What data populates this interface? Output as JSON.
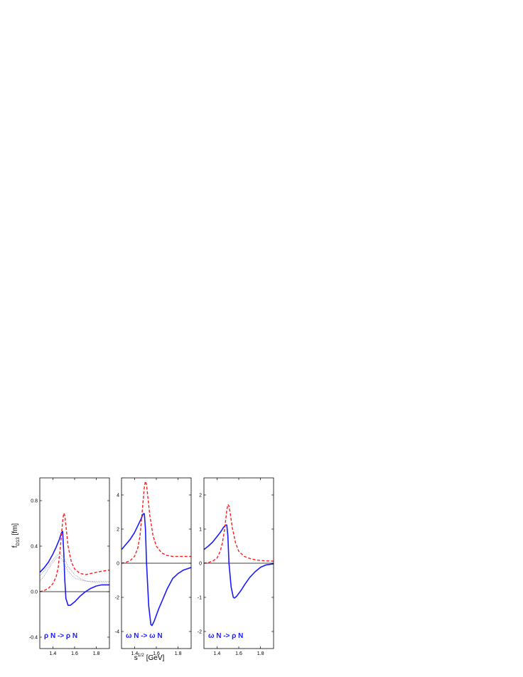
{
  "figure": {
    "ylabel_main": "f",
    "ylabel_sub": "D13",
    "ylabel_unit": "[fm]",
    "xlabel_main": "s",
    "xlabel_sup": "1/2",
    "xlabel_unit": "[GeV]"
  },
  "colors": {
    "solid": "#1a1aff",
    "dashed": "#ff1a1a",
    "dotted": "#8888aa",
    "frame": "#000000"
  },
  "chart_data": [
    {
      "type": "line",
      "annotation": "ρ N -> ρ N",
      "xlim": [
        1.28,
        1.92
      ],
      "ylim": [
        -0.5,
        1.0
      ],
      "xticks": [
        1.4,
        1.6,
        1.8
      ],
      "xtick_labels": [
        "1.4",
        "1.6",
        "1.8"
      ],
      "yticks": [
        -0.4,
        0.0,
        0.4,
        0.8
      ],
      "ytick_labels": [
        "-0.4",
        "0.0",
        "0.4",
        "0.8"
      ],
      "zero_line": true,
      "series": [
        {
          "style": "solid",
          "x": [
            1.28,
            1.32,
            1.36,
            1.4,
            1.43,
            1.46,
            1.48,
            1.49,
            1.5,
            1.51,
            1.52,
            1.54,
            1.56,
            1.6,
            1.65,
            1.7,
            1.75,
            1.8,
            1.85,
            1.92
          ],
          "y": [
            0.17,
            0.21,
            0.26,
            0.33,
            0.39,
            0.46,
            0.52,
            0.53,
            0.35,
            0.1,
            -0.06,
            -0.12,
            -0.12,
            -0.09,
            -0.04,
            0.0,
            0.03,
            0.05,
            0.06,
            0.06
          ]
        },
        {
          "style": "dashed",
          "x": [
            1.28,
            1.32,
            1.36,
            1.4,
            1.43,
            1.45,
            1.47,
            1.49,
            1.5,
            1.51,
            1.52,
            1.54,
            1.57,
            1.6,
            1.65,
            1.7,
            1.75,
            1.8,
            1.85,
            1.92
          ],
          "y": [
            0.0,
            0.01,
            0.03,
            0.07,
            0.13,
            0.22,
            0.4,
            0.62,
            0.69,
            0.67,
            0.58,
            0.4,
            0.26,
            0.2,
            0.16,
            0.15,
            0.16,
            0.17,
            0.18,
            0.19
          ]
        },
        {
          "style": "dotted",
          "x": [
            1.28,
            1.32,
            1.36,
            1.4,
            1.44,
            1.47,
            1.5,
            1.54,
            1.6,
            1.66,
            1.72,
            1.8,
            1.92
          ],
          "y": [
            0.09,
            0.14,
            0.2,
            0.26,
            0.3,
            0.3,
            0.26,
            0.18,
            0.12,
            0.1,
            0.09,
            0.09,
            0.09
          ]
        },
        {
          "style": "dotted",
          "x": [
            1.28,
            1.32,
            1.36,
            1.4,
            1.44,
            1.47,
            1.5,
            1.54,
            1.6,
            1.66,
            1.72,
            1.8,
            1.92
          ],
          "y": [
            0.14,
            0.18,
            0.23,
            0.28,
            0.32,
            0.33,
            0.3,
            0.22,
            0.15,
            0.11,
            0.09,
            0.08,
            0.08
          ]
        }
      ]
    },
    {
      "type": "line",
      "annotation": "ω N -> ω N",
      "xlim": [
        1.28,
        1.92
      ],
      "ylim": [
        -5.0,
        5.0
      ],
      "xticks": [
        1.4,
        1.6,
        1.8
      ],
      "xtick_labels": [
        "1.4",
        "1.6",
        "1.8"
      ],
      "yticks": [
        -4,
        -2,
        0,
        2,
        4
      ],
      "ytick_labels": [
        "-4",
        "-2",
        "0",
        "2",
        "4"
      ],
      "zero_line": true,
      "series": [
        {
          "style": "solid",
          "x": [
            1.28,
            1.32,
            1.36,
            1.4,
            1.43,
            1.46,
            1.48,
            1.49,
            1.5,
            1.51,
            1.53,
            1.55,
            1.56,
            1.58,
            1.62,
            1.66,
            1.7,
            1.75,
            1.8,
            1.85,
            1.92
          ],
          "y": [
            0.8,
            1.1,
            1.4,
            1.8,
            2.2,
            2.6,
            2.9,
            2.9,
            2.0,
            0.0,
            -2.5,
            -3.6,
            -3.65,
            -3.4,
            -2.7,
            -2.1,
            -1.5,
            -0.9,
            -0.6,
            -0.4,
            -0.25
          ]
        },
        {
          "style": "dashed",
          "x": [
            1.28,
            1.32,
            1.36,
            1.4,
            1.43,
            1.45,
            1.47,
            1.49,
            1.5,
            1.51,
            1.52,
            1.54,
            1.57,
            1.6,
            1.65,
            1.7,
            1.75,
            1.8,
            1.85,
            1.92
          ],
          "y": [
            0.0,
            0.05,
            0.15,
            0.4,
            0.9,
            1.6,
            3.0,
            4.5,
            4.8,
            4.6,
            4.0,
            2.8,
            1.6,
            1.0,
            0.6,
            0.45,
            0.4,
            0.4,
            0.4,
            0.4
          ]
        }
      ]
    },
    {
      "type": "line",
      "annotation": "ω N -> ρ N",
      "xlim": [
        1.28,
        1.92
      ],
      "ylim": [
        -2.5,
        2.5
      ],
      "xticks": [
        1.4,
        1.6,
        1.8
      ],
      "xtick_labels": [
        "1.4",
        "1.6",
        "1.8"
      ],
      "yticks": [
        -2,
        -1,
        0,
        1,
        2
      ],
      "ytick_labels": [
        "-2",
        "-1",
        "0",
        "1",
        "2"
      ],
      "zero_line": true,
      "series": [
        {
          "style": "solid",
          "x": [
            1.28,
            1.32,
            1.36,
            1.4,
            1.43,
            1.46,
            1.48,
            1.49,
            1.5,
            1.51,
            1.53,
            1.55,
            1.56,
            1.58,
            1.62,
            1.66,
            1.7,
            1.75,
            1.8,
            1.85,
            1.92
          ],
          "y": [
            0.4,
            0.5,
            0.62,
            0.78,
            0.9,
            1.05,
            1.12,
            1.12,
            0.8,
            0.0,
            -0.7,
            -1.0,
            -1.02,
            -0.97,
            -0.8,
            -0.6,
            -0.42,
            -0.25,
            -0.12,
            -0.05,
            -0.02
          ]
        },
        {
          "style": "dashed",
          "x": [
            1.28,
            1.32,
            1.36,
            1.4,
            1.43,
            1.45,
            1.47,
            1.49,
            1.5,
            1.51,
            1.52,
            1.54,
            1.57,
            1.6,
            1.65,
            1.7,
            1.75,
            1.8,
            1.85,
            1.92
          ],
          "y": [
            0.0,
            0.02,
            0.06,
            0.15,
            0.35,
            0.6,
            1.0,
            1.55,
            1.72,
            1.68,
            1.5,
            1.05,
            0.6,
            0.35,
            0.2,
            0.14,
            0.1,
            0.08,
            0.07,
            0.06
          ]
        }
      ]
    }
  ]
}
